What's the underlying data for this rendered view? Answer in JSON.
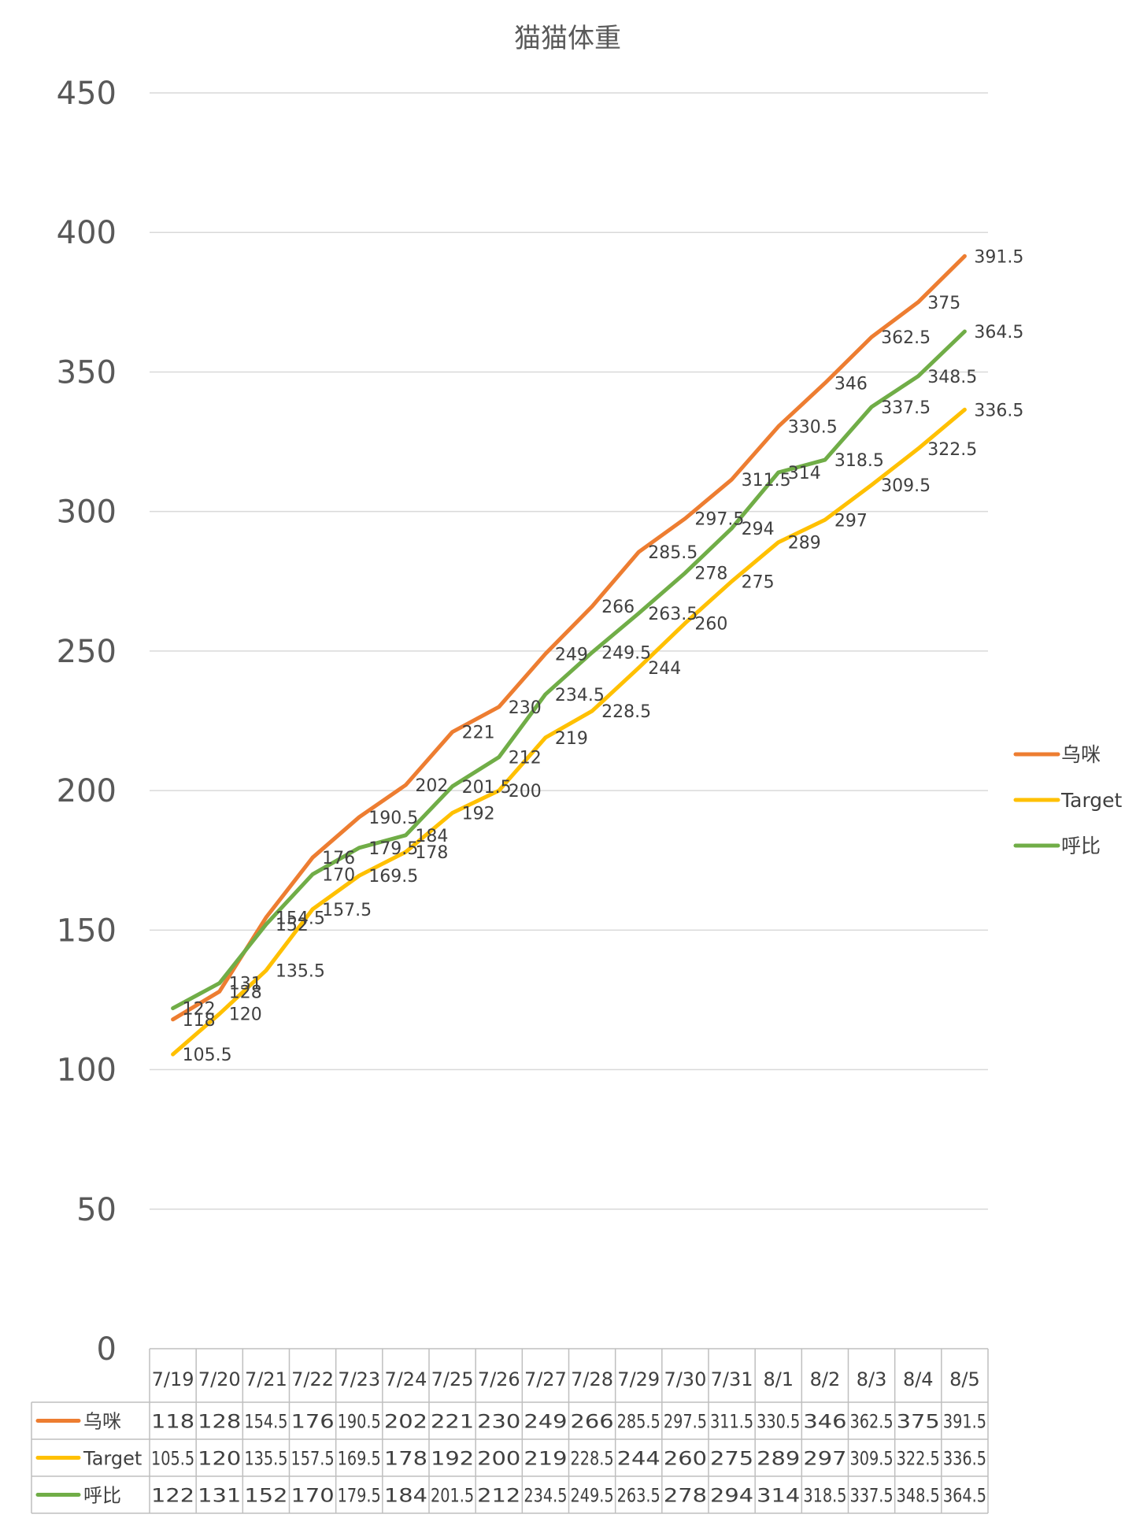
{
  "chart_data": {
    "type": "line",
    "title": "猫猫体重",
    "xlabel": "",
    "ylabel": "",
    "ylim": [
      0,
      450
    ],
    "yticks": [
      0,
      50,
      100,
      150,
      200,
      250,
      300,
      350,
      400,
      450
    ],
    "grid": true,
    "legend_position": "right",
    "categories": [
      "7/19",
      "7/20",
      "7/21",
      "7/22",
      "7/23",
      "7/24",
      "7/25",
      "7/26",
      "7/27",
      "7/28",
      "7/29",
      "7/30",
      "7/31",
      "8/1",
      "8/2",
      "8/3",
      "8/4",
      "8/5"
    ],
    "series": [
      {
        "name": "乌咪",
        "color": "#ED7D31",
        "values": [
          118,
          128,
          154.5,
          176,
          190.5,
          202,
          221,
          230,
          249,
          266,
          285.5,
          297.5,
          311.5,
          330.5,
          346,
          362.5,
          375,
          391.5
        ],
        "table_labels": [
          "118",
          "128",
          "154.5",
          "176",
          "190.5",
          "202",
          "221",
          "230",
          "249",
          "266",
          "285.5",
          "297.5",
          "311.5",
          "330.5",
          "346",
          "362.5",
          "375",
          "391.5"
        ]
      },
      {
        "name": "Target",
        "color": "#FFC000",
        "values": [
          105.5,
          120,
          135.5,
          157.5,
          169.5,
          178,
          192,
          200,
          219,
          228.5,
          244,
          260,
          275,
          289,
          297,
          309.5,
          322.5,
          336.5
        ],
        "table_labels": [
          "105.5",
          "120",
          "135.5",
          "157.5",
          "169.5",
          "178",
          "192",
          "200",
          "219",
          "228.5",
          "244",
          "260",
          "275",
          "289",
          "297",
          "309.5",
          "322.5",
          "336.5"
        ]
      },
      {
        "name": "呼比",
        "color": "#70AD47",
        "values": [
          122,
          131,
          152,
          170,
          179.5,
          184,
          201.5,
          212,
          234.5,
          249.5,
          263.5,
          278,
          294,
          314,
          318.5,
          337.5,
          348.5,
          364.5
        ],
        "table_labels": [
          "122",
          "131",
          "152",
          "170",
          "179.5",
          "184",
          "201.5",
          "212",
          "234.5",
          "249.5",
          "263.5",
          "278",
          "294",
          "314",
          "318.5",
          "337.5",
          "348.5",
          "364.5"
        ]
      }
    ]
  }
}
